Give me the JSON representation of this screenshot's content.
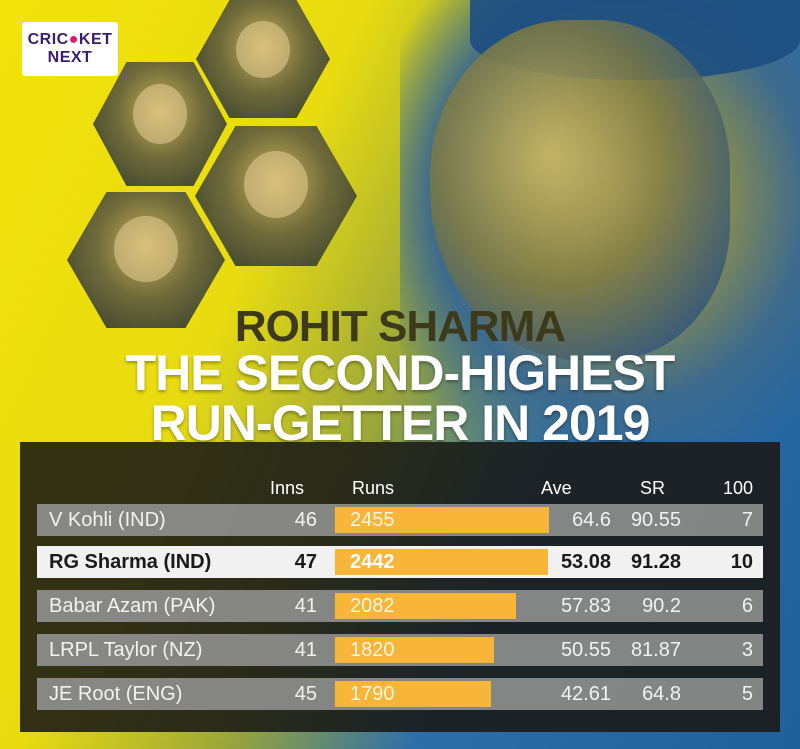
{
  "brand": {
    "line1a": "CRIC",
    "line1b": "KET",
    "line2": "NEXT"
  },
  "player": "ROHIT SHARMA",
  "headline": {
    "line1": "THE SECOND-HIGHEST",
    "line2": "RUN-GETTER IN 2019"
  },
  "table": {
    "headers": {
      "inns": "Inns",
      "runs": "Runs",
      "ave": "Ave",
      "sr": "SR",
      "hundreds": "100"
    },
    "max_runs": 2455,
    "rows": [
      {
        "name": "V Kohli (IND)",
        "inns": "46",
        "runs": 2455,
        "runs_label": "2455",
        "ave": "64.6",
        "sr": "90.55",
        "hundreds": "7",
        "highlight": false
      },
      {
        "name": "RG Sharma (IND)",
        "inns": "47",
        "runs": 2442,
        "runs_label": "2442",
        "ave": "53.08",
        "sr": "91.28",
        "hundreds": "10",
        "highlight": true
      },
      {
        "name": "Babar Azam (PAK)",
        "inns": "41",
        "runs": 2082,
        "runs_label": "2082",
        "ave": "57.83",
        "sr": "90.2",
        "hundreds": "6",
        "highlight": false
      },
      {
        "name": "LRPL Taylor (NZ)",
        "inns": "41",
        "runs": 1820,
        "runs_label": "1820",
        "ave": "50.55",
        "sr": "81.87",
        "hundreds": "3",
        "highlight": false
      },
      {
        "name": "JE Root (ENG)",
        "inns": "45",
        "runs": 1790,
        "runs_label": "1790",
        "ave": "42.61",
        "sr": "64.8",
        "hundreds": "5",
        "highlight": false
      }
    ]
  },
  "colors": {
    "bar": "#f7b53a",
    "yellow": "#f2e20a",
    "blue": "#1f5f9a"
  }
}
